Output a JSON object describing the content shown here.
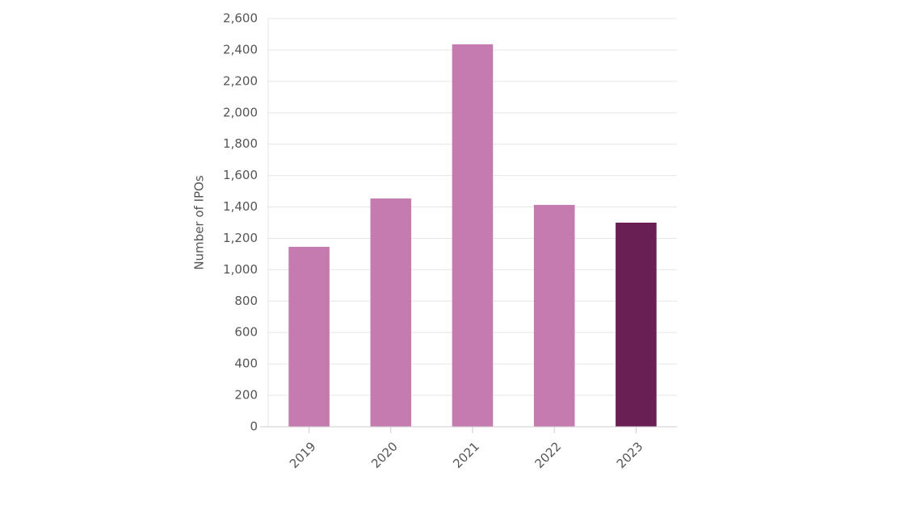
{
  "chart_data": {
    "type": "bar",
    "y_label": "Number of IPOs",
    "categories": [
      "2019",
      "2020",
      "2021",
      "2022",
      "2023"
    ],
    "values": [
      1146,
      1454,
      2436,
      1413,
      1300
    ],
    "colors": [
      "#c57bae",
      "#c57bae",
      "#c57bae",
      "#c57bae",
      "#6a1f53"
    ],
    "ylim": [
      0,
      2600
    ],
    "yticks": [
      0,
      200,
      400,
      600,
      800,
      {
        "value": 1000,
        "label": "1,000"
      },
      {
        "value": 1200,
        "label": "1,200"
      },
      {
        "value": 1400,
        "label": "1,400"
      },
      {
        "value": 1600,
        "label": "1,600"
      },
      {
        "value": 1800,
        "label": "1,800"
      },
      {
        "value": 2000,
        "label": "2,000"
      },
      {
        "value": 2200,
        "label": "2,200"
      },
      {
        "value": 2400,
        "label": "2,400"
      },
      {
        "value": 2600,
        "label": "2,600"
      }
    ],
    "grid": true
  }
}
